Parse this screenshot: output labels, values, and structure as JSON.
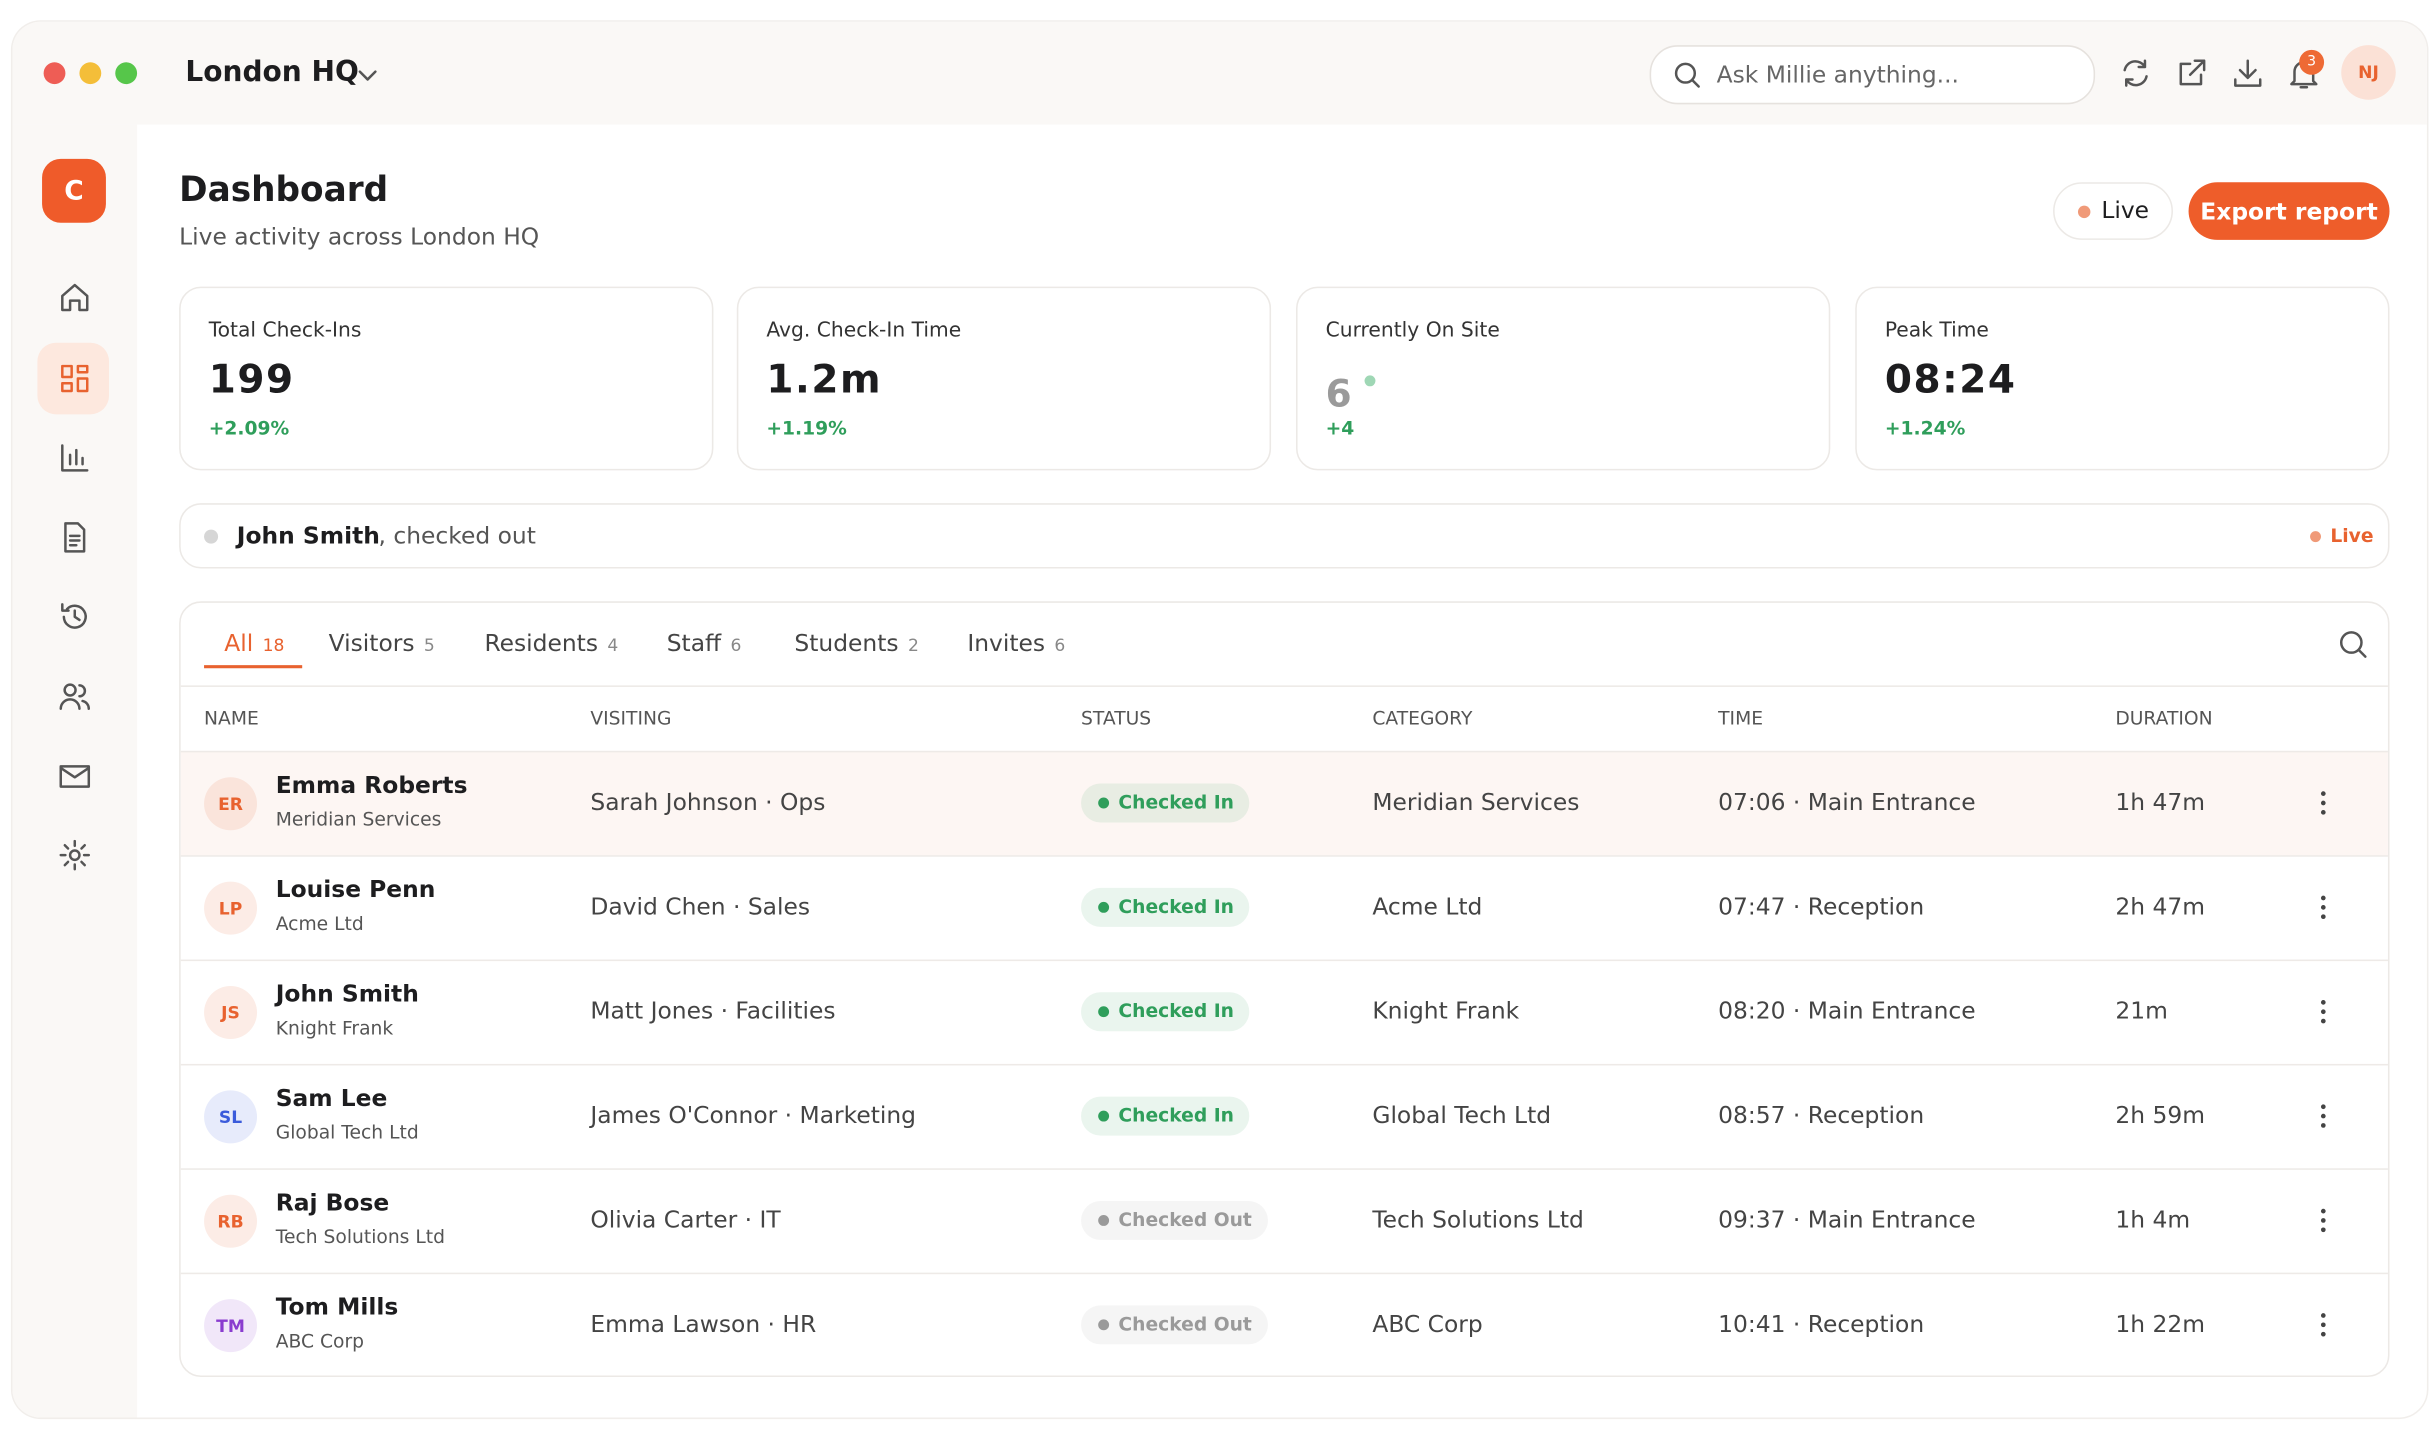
{
  "window": {
    "location": "London HQ",
    "search_placeholder": "Ask Millie anything...",
    "notifications": "3",
    "user_initials": "NJ"
  },
  "sidebar": {
    "logo": "C"
  },
  "header": {
    "title": "Dashboard",
    "subtitle": "Live activity across London HQ",
    "live": "Live",
    "export": "Export report"
  },
  "stats": [
    {
      "label": "Total Check-Ins",
      "value": "199",
      "change": "+2.09%"
    },
    {
      "label": "Avg. Check-In Time",
      "value": "1.2m",
      "change": "+1.19%"
    },
    {
      "label": "Currently On Site",
      "value": "6",
      "change": "+4"
    },
    {
      "label": "Peak Time",
      "value": "08:24",
      "change": "+1.24%"
    }
  ],
  "activity": {
    "name": "John Smith",
    "text": ", checked out",
    "live": "Live"
  },
  "tabs": [
    {
      "label": "All",
      "count": "18"
    },
    {
      "label": "Visitors",
      "count": "5"
    },
    {
      "label": "Residents",
      "count": "4"
    },
    {
      "label": "Staff",
      "count": "6"
    },
    {
      "label": "Students",
      "count": "2"
    },
    {
      "label": "Invites",
      "count": "6"
    }
  ],
  "table": {
    "columns": [
      "NAME",
      "VISITING",
      "STATUS",
      "CATEGORY",
      "TIME",
      "DURATION"
    ],
    "rows": [
      {
        "initials": "ER",
        "name": "Emma Roberts",
        "company": "Meridian Services",
        "visiting": "Sarah Johnson · Ops",
        "status": "Checked In",
        "category": "Meridian Services",
        "time": "07:06 · Main Entrance",
        "duration": "1h 47m",
        "avatar_color": "#e8622f",
        "status_color": "#2f9e5b"
      },
      {
        "initials": "LP",
        "name": "Louise Penn",
        "company": "Acme Ltd",
        "visiting": "David Chen · Sales",
        "status": "Checked In",
        "category": "Acme Ltd",
        "time": "07:47 · Reception",
        "duration": "2h 47m",
        "avatar_color": "#e8622f",
        "status_color": "#2f9e5b"
      },
      {
        "initials": "JS",
        "name": "John Smith",
        "company": "Knight Frank",
        "visiting": "Matt Jones · Facilities",
        "status": "Checked In",
        "category": "Knight Frank",
        "time": "08:20 · Main Entrance",
        "duration": "21m",
        "avatar_color": "#e8622f",
        "status_color": "#2f9e5b"
      },
      {
        "initials": "SL",
        "name": "Sam Lee",
        "company": "Global Tech Ltd",
        "visiting": "James O'Connor · Marketing",
        "status": "Checked In",
        "category": "Global Tech Ltd",
        "time": "08:57 · Reception",
        "duration": "2h 59m",
        "avatar_color": "#3b5bdb",
        "status_color": "#2f9e5b"
      },
      {
        "initials": "RB",
        "name": "Raj Bose",
        "company": "Tech Solutions Ltd",
        "visiting": "Olivia Carter · IT",
        "status": "Checked Out",
        "category": "Tech Solutions Ltd",
        "time": "09:37 · Main Entrance",
        "duration": "1h 4m",
        "avatar_color": "#e8622f",
        "status_color": "#9a9a9a"
      },
      {
        "initials": "TM",
        "name": "Tom Mills",
        "company": "ABC Corp",
        "visiting": "Emma Lawson · HR",
        "status": "Checked Out",
        "category": "ABC Corp",
        "time": "10:41 · Reception",
        "duration": "1h 22m",
        "avatar_color": "#8a3ccf",
        "status_color": "#9a9a9a"
      }
    ]
  }
}
